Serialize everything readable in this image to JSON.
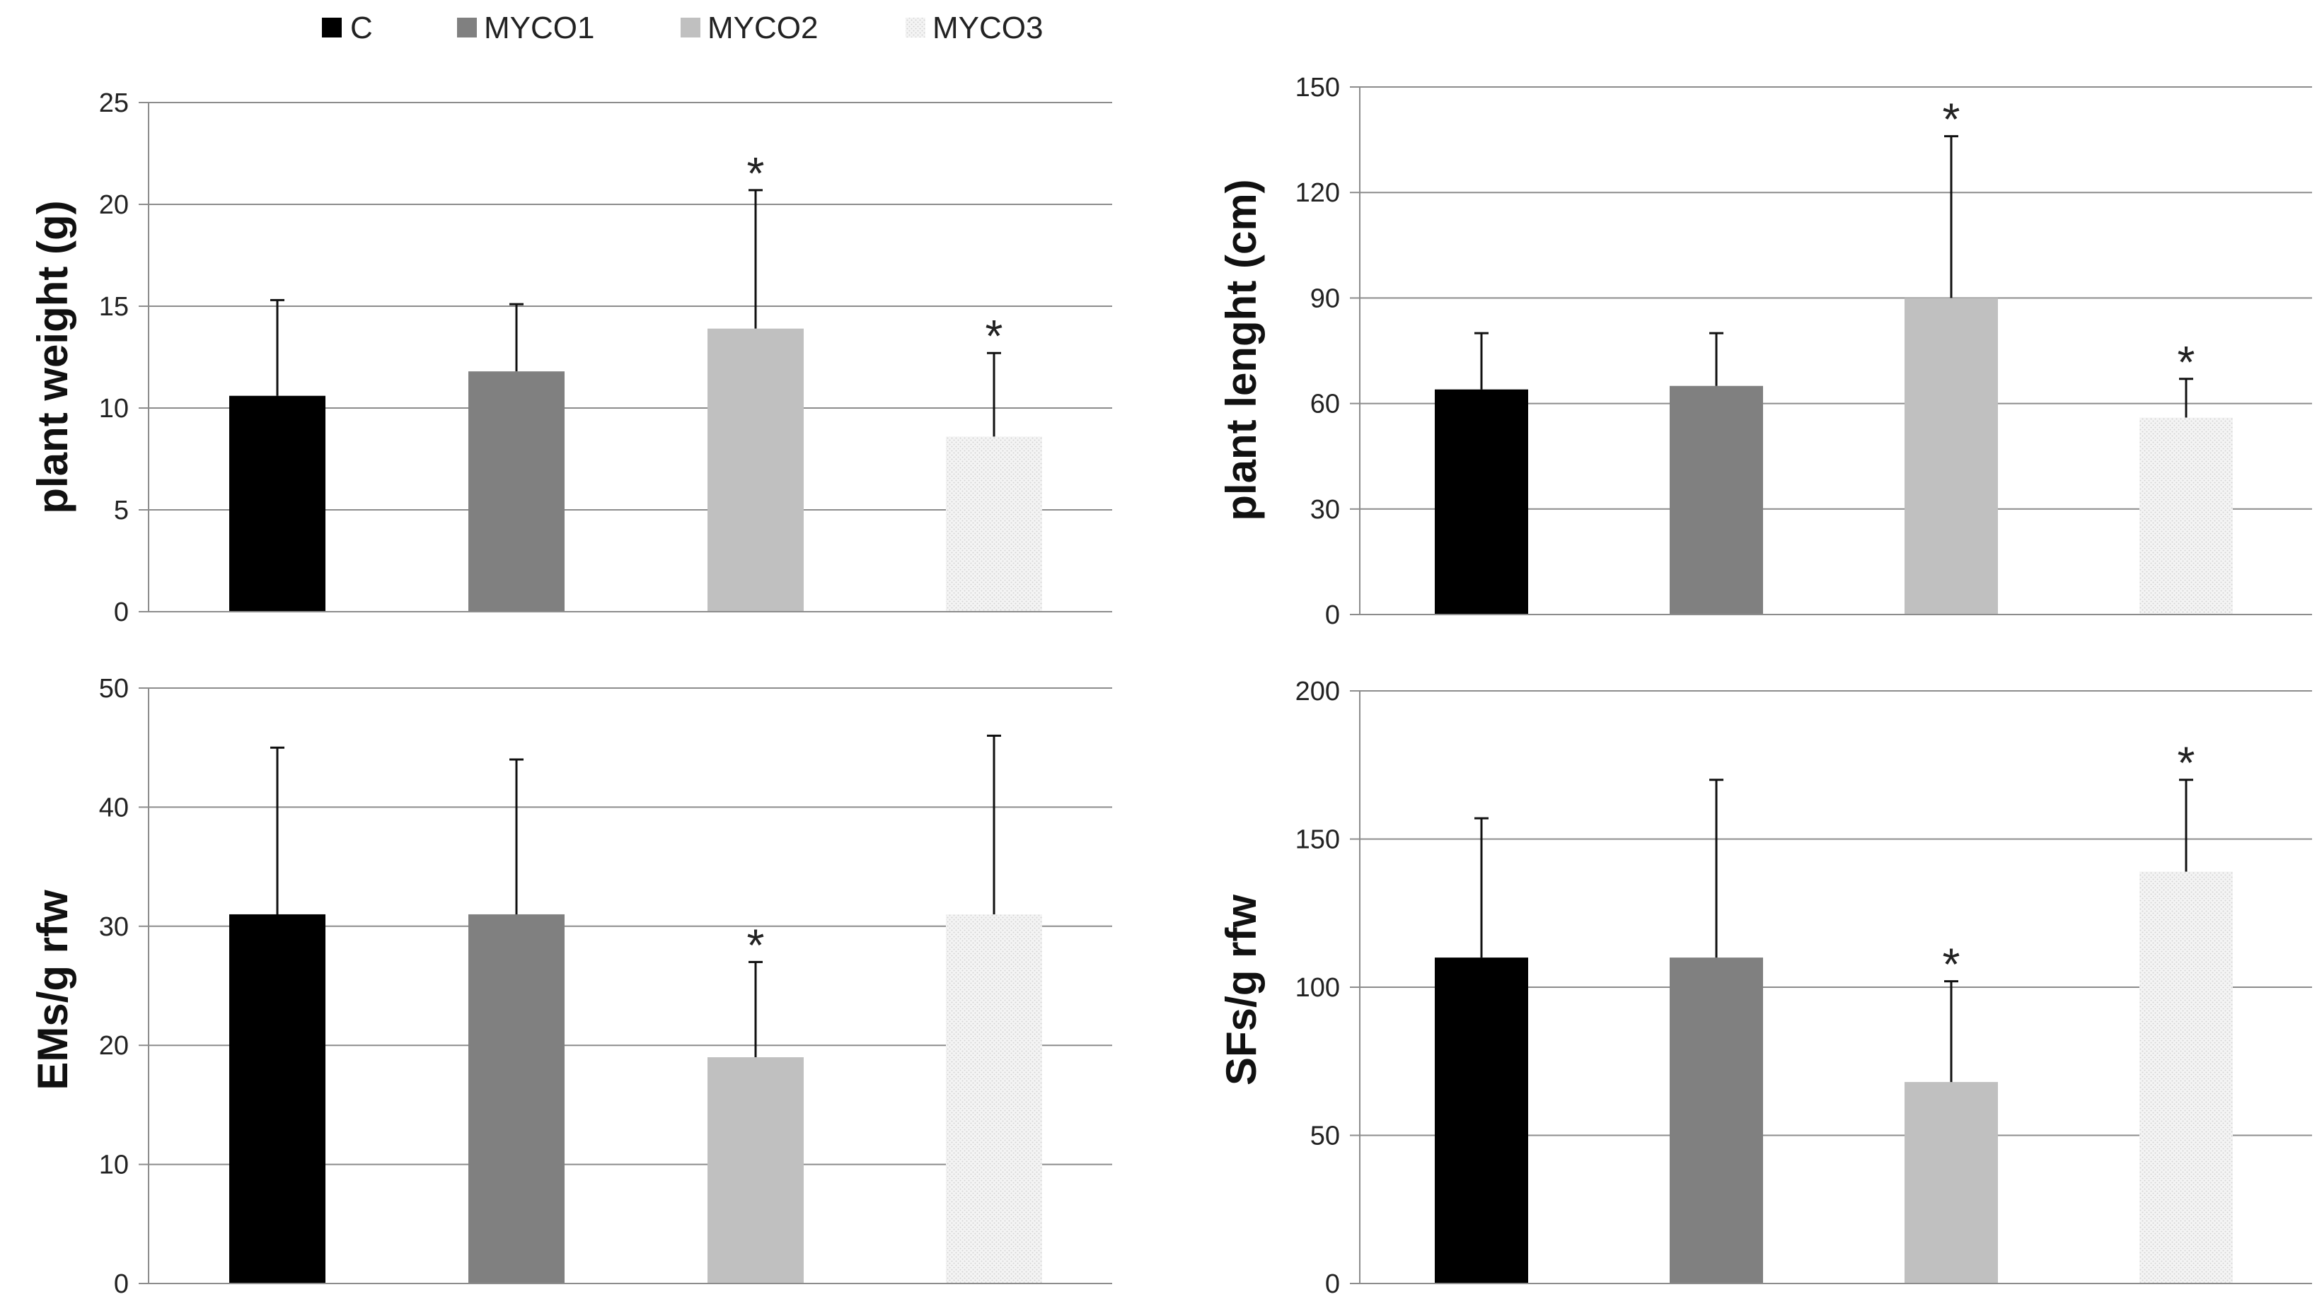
{
  "legend": {
    "items": [
      {
        "label": "C",
        "color": "#000000"
      },
      {
        "label": "MYCO1",
        "color": "#808080"
      },
      {
        "label": "MYCO2",
        "color": "#c0c0c0"
      },
      {
        "label": "MYCO3",
        "color": "#ececec"
      }
    ]
  },
  "chart_data": [
    {
      "type": "bar",
      "title": "",
      "xlabel": "",
      "ylabel": "plant weight (g)",
      "ylim": [
        0,
        25
      ],
      "yticks": [
        "0",
        "5",
        "10",
        "15",
        "20",
        "25"
      ],
      "categories": [
        "C",
        "MYCO1",
        "MYCO2",
        "MYCO3"
      ],
      "values": [
        10.6,
        11.8,
        13.9,
        8.6
      ],
      "error_upper": [
        15.3,
        15.1,
        20.7,
        12.7
      ],
      "significance": [
        "",
        "",
        "*",
        "*"
      ],
      "colors": [
        "#000000",
        "#808080",
        "#c0c0c0",
        "#ececec"
      ]
    },
    {
      "type": "bar",
      "title": "",
      "xlabel": "",
      "ylabel": "plant lenght (cm)",
      "ylim": [
        0,
        150
      ],
      "yticks": [
        "0",
        "30",
        "60",
        "90",
        "120",
        "150"
      ],
      "categories": [
        "C",
        "MYCO1",
        "MYCO2",
        "MYCO3"
      ],
      "values": [
        64,
        65,
        90,
        56
      ],
      "error_upper": [
        80,
        80,
        136,
        67
      ],
      "significance": [
        "",
        "",
        "*",
        "*"
      ],
      "colors": [
        "#000000",
        "#808080",
        "#c0c0c0",
        "#ececec"
      ]
    },
    {
      "type": "bar",
      "title": "",
      "xlabel": "",
      "ylabel": "EMs/g rfw",
      "ylim": [
        0,
        50
      ],
      "yticks": [
        "0",
        "10",
        "20",
        "30",
        "40",
        "50"
      ],
      "categories": [
        "C",
        "MYCO1",
        "MYCO2",
        "MYCO3"
      ],
      "values": [
        31,
        31,
        19,
        31
      ],
      "error_upper": [
        45,
        44,
        27,
        46
      ],
      "significance": [
        "",
        "",
        "*",
        ""
      ],
      "colors": [
        "#000000",
        "#808080",
        "#c0c0c0",
        "#ececec"
      ]
    },
    {
      "type": "bar",
      "title": "",
      "xlabel": "",
      "ylabel": "SFs/g rfw",
      "ylim": [
        0,
        200
      ],
      "yticks": [
        "0",
        "50",
        "100",
        "150",
        "200"
      ],
      "categories": [
        "C",
        "MYCO1",
        "MYCO2",
        "MYCO3"
      ],
      "values": [
        110,
        110,
        68,
        139
      ],
      "error_upper": [
        157,
        170,
        102,
        170
      ],
      "significance": [
        "",
        "",
        "*",
        "*"
      ],
      "colors": [
        "#000000",
        "#808080",
        "#c0c0c0",
        "#ececec"
      ]
    }
  ]
}
